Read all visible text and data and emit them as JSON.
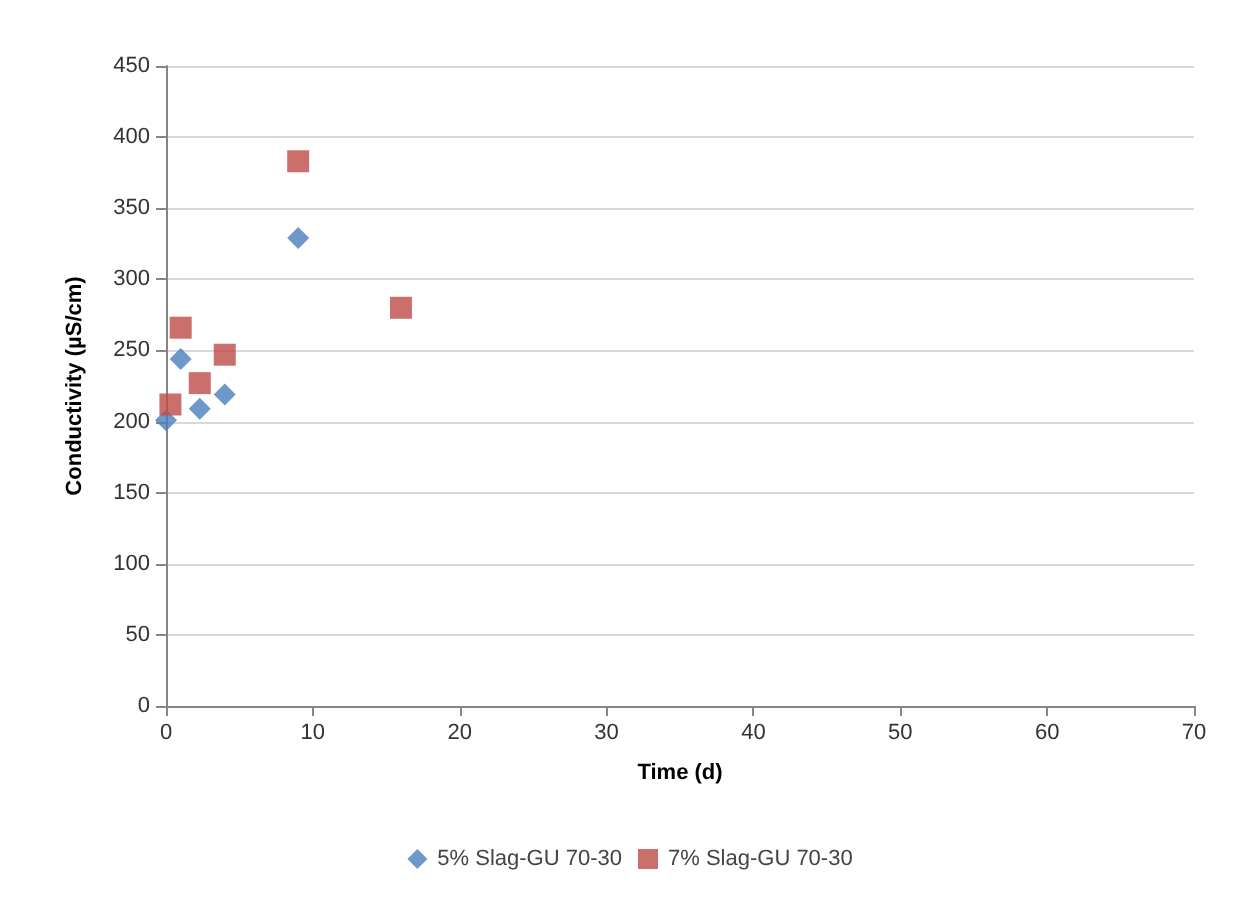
{
  "chart_data": {
    "type": "scatter",
    "xlabel": "Time (d)",
    "ylabel": "Conductivity (µS/cm)",
    "xlim": [
      0,
      70
    ],
    "xticks": [
      0,
      10,
      20,
      30,
      40,
      50,
      60,
      70
    ],
    "ylim": [
      0,
      450
    ],
    "yticks": [
      0,
      50,
      100,
      150,
      200,
      250,
      300,
      350,
      400,
      450
    ],
    "grid": "y",
    "legend": "bottom",
    "series": [
      {
        "name": "5% Slag-GU 70-30",
        "color": "#4a7ebb",
        "marker": "diamond",
        "x": [
          0,
          1,
          2.3,
          4,
          9
        ],
        "values": [
          201,
          244,
          209,
          219,
          329
        ]
      },
      {
        "name": "7% Slag-GU 70-30",
        "color": "#be4b48",
        "marker": "square",
        "x": [
          0.3,
          1,
          2.3,
          4,
          9,
          16
        ],
        "values": [
          212,
          266,
          227,
          247,
          383,
          280
        ]
      }
    ]
  }
}
